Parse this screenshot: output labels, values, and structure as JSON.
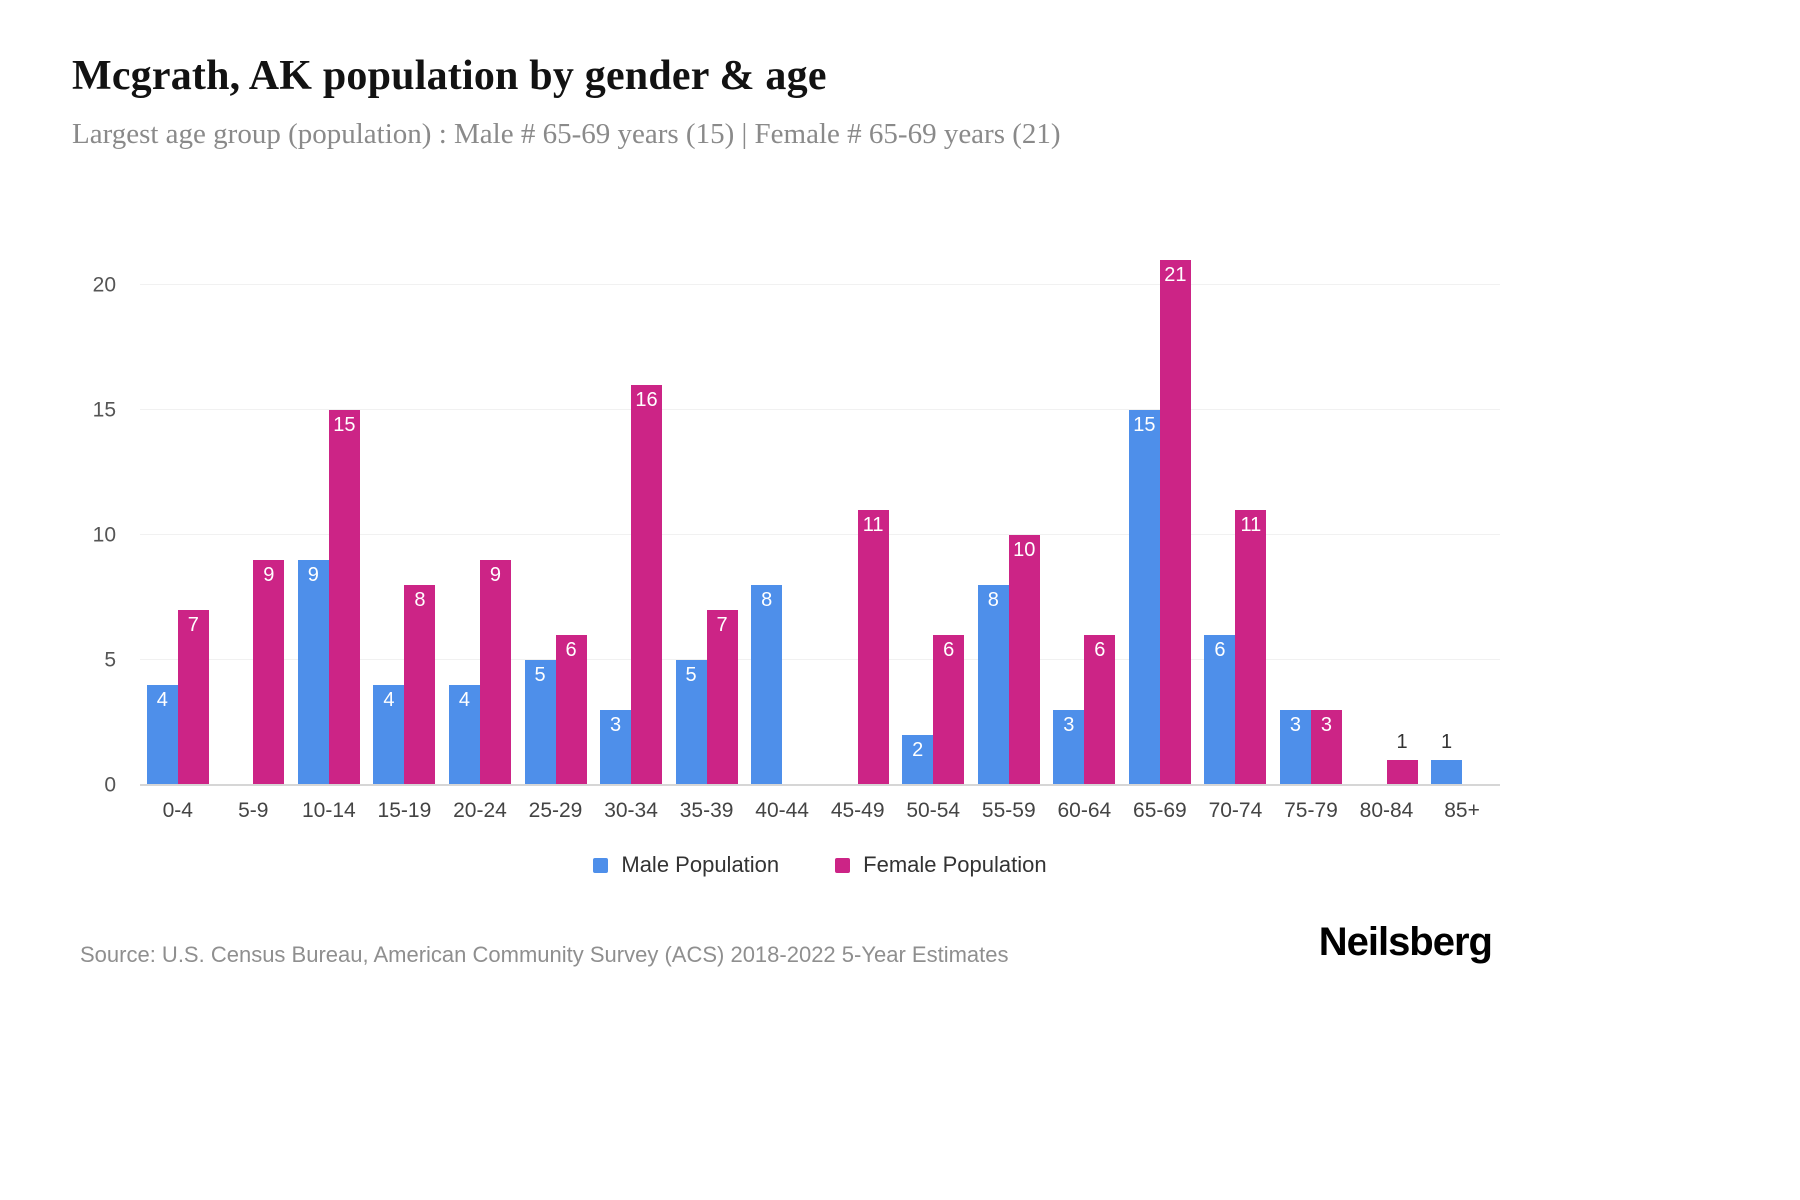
{
  "header": {
    "title": "Mcgrath, AK population by gender & age",
    "subtitle": "Largest age group (population) : Male # 65-69 years (15) | Female # 65-69 years (21)"
  },
  "chart_data": {
    "type": "bar",
    "categories": [
      "0-4",
      "5-9",
      "10-14",
      "15-19",
      "20-24",
      "25-29",
      "30-34",
      "35-39",
      "40-44",
      "45-49",
      "50-54",
      "55-59",
      "60-64",
      "65-69",
      "70-74",
      "75-79",
      "80-84",
      "85+"
    ],
    "series": [
      {
        "name": "Male Population",
        "color": "#4e8fea",
        "values": [
          4,
          0,
          9,
          4,
          4,
          5,
          3,
          5,
          8,
          0,
          2,
          8,
          3,
          15,
          6,
          3,
          0,
          1
        ]
      },
      {
        "name": "Female Population",
        "color": "#cc2486",
        "values": [
          7,
          9,
          15,
          8,
          9,
          6,
          16,
          7,
          0,
          11,
          6,
          10,
          6,
          21,
          11,
          3,
          1,
          0
        ]
      }
    ],
    "y_ticks": [
      0,
      5,
      10,
      15,
      20
    ],
    "ylim": [
      0,
      21
    ],
    "grid": true,
    "legend_position": "bottom",
    "title": "Mcgrath, AK population by gender & age",
    "xlabel": "",
    "ylabel": ""
  },
  "footer": {
    "source": "Source: U.S. Census Bureau, American Community Survey (ACS) 2018-2022 5-Year Estimates",
    "brand": "Neilsberg"
  }
}
